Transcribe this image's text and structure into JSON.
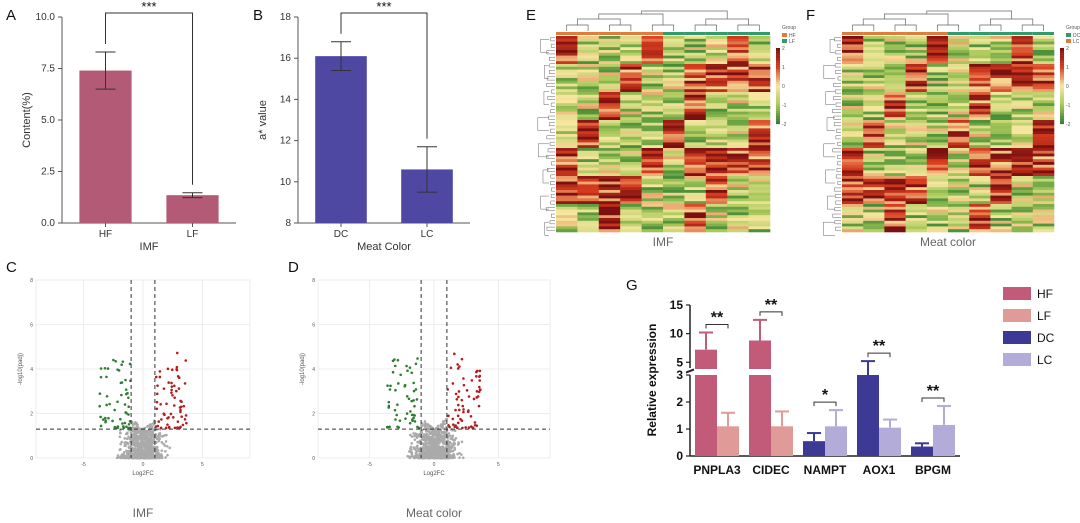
{
  "panel_labels": {
    "A": "A",
    "B": "B",
    "C": "C",
    "D": "D",
    "E": "E",
    "F": "F",
    "G": "G"
  },
  "chart_data": [
    {
      "id": "A",
      "type": "bar",
      "categories": [
        "HF",
        "LF"
      ],
      "values": [
        7.4,
        1.35
      ],
      "errors": [
        0.9,
        0.12
      ],
      "ylim": [
        0,
        10.0
      ],
      "yticks": [
        "0.0",
        "2.5",
        "5.0",
        "7.5",
        "10.0"
      ],
      "ylabel": "Content(%)",
      "xlabel": "IMF",
      "significance": "***",
      "color": "#b35a77"
    },
    {
      "id": "B",
      "type": "bar",
      "categories": [
        "DC",
        "LC"
      ],
      "values": [
        16.1,
        10.6
      ],
      "errors": [
        0.7,
        1.1
      ],
      "ylim": [
        8,
        18
      ],
      "yticks": [
        "8",
        "10",
        "12",
        "14",
        "16",
        "18"
      ],
      "ylabel": "a* value",
      "xlabel": "Meat Color",
      "significance": "***",
      "color": "#4e48a3"
    },
    {
      "id": "C",
      "type": "scatter",
      "xlabel": "Log2FC",
      "ylabel": "-log10(padj)",
      "caption": "IMF",
      "xticks": [
        "-5",
        "0",
        "5"
      ],
      "yticks": [
        "0",
        "2",
        "4",
        "6",
        "8"
      ],
      "xlim": [
        -9,
        9
      ],
      "ylim": [
        0,
        8
      ],
      "threshold_x": [
        -1,
        1
      ],
      "threshold_y": 1.3,
      "colors": {
        "down": "#2e7d32",
        "up": "#b71c1c",
        "ns": "#aaaaaa"
      }
    },
    {
      "id": "D",
      "type": "scatter",
      "xlabel": "Log2FC",
      "ylabel": "-log10(padj)",
      "caption": "Meat color",
      "xticks": [
        "-5",
        "0",
        "5"
      ],
      "yticks": [
        "0",
        "2",
        "4",
        "6",
        "8"
      ],
      "xlim": [
        -9,
        9
      ],
      "ylim": [
        0,
        8
      ],
      "threshold_x": [
        -1,
        1
      ],
      "threshold_y": 1.3,
      "colors": {
        "down": "#2e7d32",
        "up": "#b71c1c",
        "ns": "#aaaaaa"
      }
    },
    {
      "id": "E",
      "type": "heatmap",
      "caption": "IMF",
      "legend_title": "Group",
      "groups": [
        "HF",
        "LF"
      ],
      "group_colors": [
        "#e07b39",
        "#2e9c6b"
      ],
      "scale_ticks": [
        "2",
        "1",
        "0",
        "-1",
        "-2"
      ],
      "scale_colors": [
        "#7a1010",
        "#d83c1f",
        "#f7e7a0",
        "#a9c95a",
        "#2f7d2f"
      ]
    },
    {
      "id": "F",
      "type": "heatmap",
      "caption": "Meat color",
      "legend_title": "Group",
      "groups": [
        "DC",
        "LC"
      ],
      "group_colors": [
        "#2e9c6b",
        "#e07b39"
      ],
      "scale_ticks": [
        "2",
        "1",
        "0",
        "-1",
        "-2"
      ],
      "scale_colors": [
        "#7a1010",
        "#d83c1f",
        "#f7e7a0",
        "#a9c95a",
        "#2f7d2f"
      ]
    },
    {
      "id": "G",
      "type": "bar",
      "ylabel": "Relative expression",
      "categories": [
        "PNPLA3",
        "CIDEC",
        "NAMPT",
        "AOX1",
        "BPGM"
      ],
      "yticks_lower": [
        "0",
        "1",
        "2",
        "3"
      ],
      "yticks_upper": [
        "5",
        "10",
        "15"
      ],
      "axis_break": true,
      "series": [
        {
          "name": "HF",
          "color": "#c25b7a",
          "values": [
            7.2,
            8.8,
            null,
            null,
            null
          ],
          "errors": [
            3.0,
            3.6,
            null,
            null,
            null
          ]
        },
        {
          "name": "LF",
          "color": "#e09a97",
          "values": [
            1.1,
            1.1,
            null,
            null,
            null
          ],
          "errors": [
            0.5,
            0.55,
            null,
            null,
            null
          ]
        },
        {
          "name": "DC",
          "color": "#3c3a95",
          "values": [
            null,
            null,
            0.55,
            3.4,
            0.35
          ],
          "errors": [
            null,
            null,
            0.3,
            1.8,
            0.12
          ]
        },
        {
          "name": "LC",
          "color": "#b3acd8",
          "values": [
            null,
            null,
            1.1,
            1.05,
            1.15
          ],
          "errors": [
            null,
            null,
            0.6,
            0.3,
            0.7
          ]
        }
      ],
      "significance": [
        "**",
        "**",
        "*",
        "**",
        "**"
      ]
    }
  ]
}
